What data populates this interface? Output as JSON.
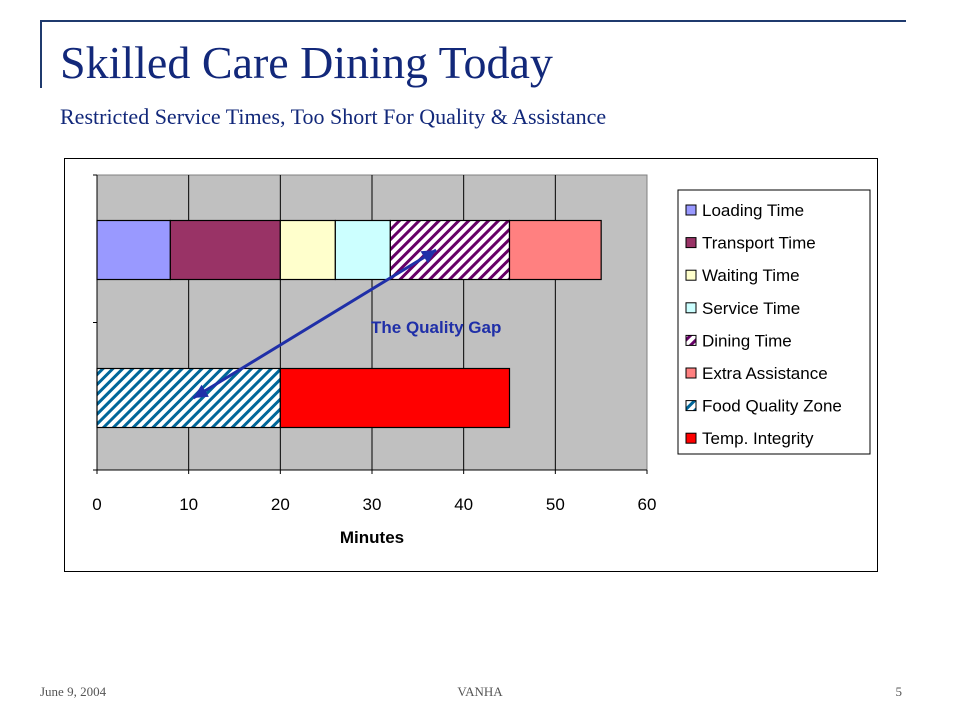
{
  "slide": {
    "title": "Skilled Care Dining Today",
    "subtitle": "Restricted Service Times, Too Short For Quality & Assistance",
    "footer_date": "June 9, 2004",
    "footer_center": "VANHA",
    "page_number": "5"
  },
  "chart_data": {
    "type": "bar",
    "orientation": "horizontal",
    "stacked": true,
    "xlabel": "Minutes",
    "xlim": [
      0,
      60
    ],
    "xticks": [
      0,
      10,
      20,
      30,
      40,
      50,
      60
    ],
    "grid": "vertical",
    "legend_position": "right",
    "rows": [
      {
        "segments": [
          {
            "series": "Loading Time",
            "value": 8
          },
          {
            "series": "Transport Time",
            "value": 12
          },
          {
            "series": "Waiting Time",
            "value": 6
          },
          {
            "series": "Service Time",
            "value": 6
          },
          {
            "series": "Dining Time",
            "value": 13
          },
          {
            "series": "Extra Assistance",
            "value": 10
          }
        ]
      },
      {
        "segments": [
          {
            "series": "Food Quality Zone",
            "value": 20
          },
          {
            "series": "Temp. Integrity",
            "value": 25
          }
        ]
      }
    ],
    "series": [
      {
        "name": "Loading Time",
        "color": "#9999ff",
        "hatch": false
      },
      {
        "name": "Transport Time",
        "color": "#993366",
        "hatch": false
      },
      {
        "name": "Waiting Time",
        "color": "#ffffcc",
        "hatch": false
      },
      {
        "name": "Service Time",
        "color": "#ccffff",
        "hatch": false
      },
      {
        "name": "Dining Time",
        "color": "#660066",
        "hatch": true
      },
      {
        "name": "Extra Assistance",
        "color": "#ff8080",
        "hatch": false
      },
      {
        "name": "Food Quality Zone",
        "color": "#006699",
        "hatch": true
      },
      {
        "name": "Temp. Integrity",
        "color": "#ff0000",
        "hatch": false
      }
    ],
    "annotation": {
      "text": "The Quality Gap",
      "arrow_from": {
        "x": 37,
        "row": 0
      },
      "arrow_to": {
        "x": 10.5,
        "row": 1
      },
      "color": "#1f2fa8"
    },
    "plot_background": "#c0c0c0"
  }
}
